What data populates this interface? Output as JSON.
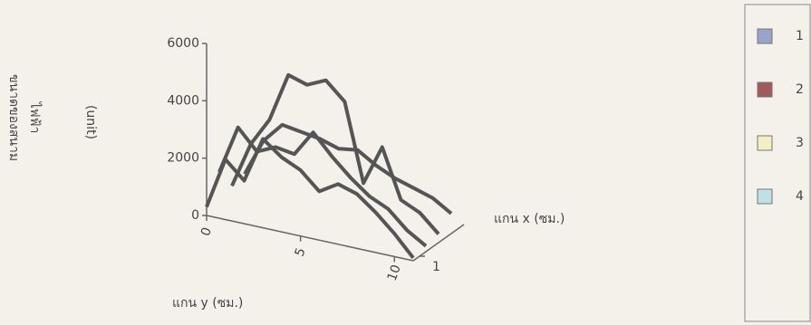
{
  "chart_data": {
    "type": "line3d",
    "ylabel": [
      "ขนาดของสนาม",
      "ไฟฟ้า"
    ],
    "yunit": "(unit)",
    "xlabel": "แกน y (ซม.)",
    "depth_label": "แกน x (ซม.)",
    "x": [
      0,
      1,
      2,
      3,
      4,
      5,
      6,
      7,
      8,
      9,
      10,
      11
    ],
    "xlim": [
      0,
      11
    ],
    "xticks": [
      0,
      5,
      10
    ],
    "ylim": [
      0,
      6000
    ],
    "yticks": [
      0,
      2000,
      4000,
      6000
    ],
    "depth_ticks": [
      1
    ],
    "line_color": "#555555",
    "series": [
      {
        "name": "1",
        "color": "#9aa3c8",
        "values": [
          300,
          2100,
          1500,
          3100,
          2600,
          2300,
          1700,
          2100,
          1900,
          1400,
          800,
          100
        ]
      },
      {
        "name": "2",
        "color": "#a05a5a",
        "values": [
          1200,
          2900,
          2200,
          2500,
          2400,
          3300,
          2600,
          2000,
          1500,
          1200,
          600,
          200
        ]
      },
      {
        "name": "3",
        "color": "#f3edc8",
        "values": [
          400,
          2000,
          3000,
          4700,
          4500,
          4800,
          4200,
          1500,
          2900,
          1200,
          900,
          300
        ]
      },
      {
        "name": "4",
        "color": "#bfe0e6",
        "values": [
          500,
          1800,
          2500,
          2400,
          2300,
          2100,
          2200,
          1800,
          1500,
          1300,
          1100,
          700
        ]
      }
    ],
    "legend": "right"
  }
}
